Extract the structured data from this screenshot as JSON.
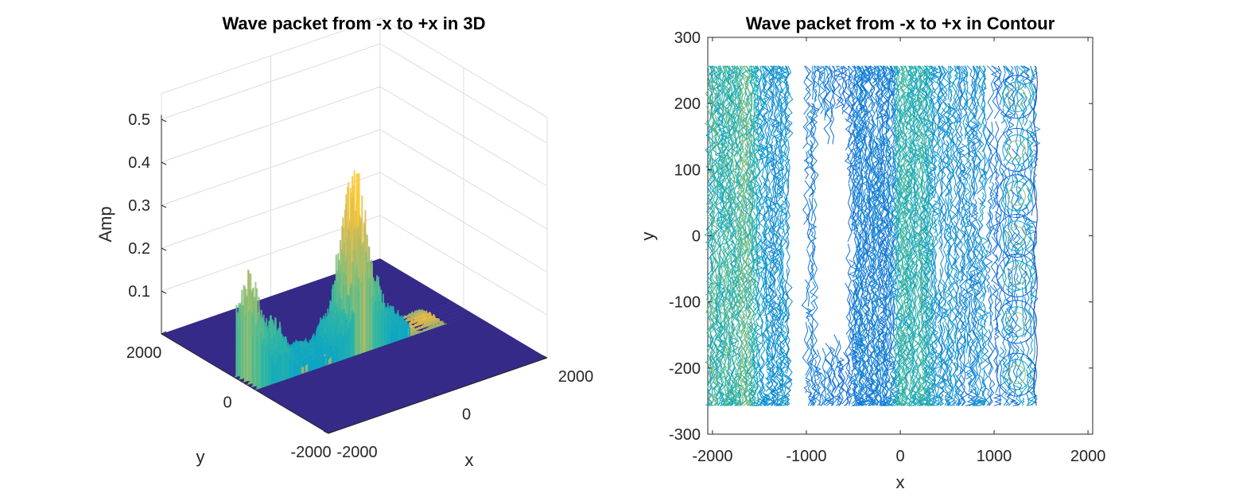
{
  "chart_data": [
    {
      "type": "surface",
      "title": "Wave packet from -x to +x in 3D",
      "xlabel": "x",
      "ylabel": "y",
      "zlabel": "Amp",
      "xlim": [
        -2000,
        2000
      ],
      "ylim": [
        -2000,
        2000
      ],
      "zlim": [
        0,
        0.5
      ],
      "x_ticks": [
        -2000,
        0,
        2000
      ],
      "y_ticks": [
        -2000,
        0,
        2000
      ],
      "z_ticks": [
        0.1,
        0.2,
        0.3,
        0.4,
        0.5
      ],
      "x_tick_labels": [
        "-2000",
        "0",
        "2000"
      ],
      "y_tick_labels": [
        "-2000",
        "0",
        "2000"
      ],
      "z_tick_labels": [
        "0.1",
        "0.2",
        "0.3",
        "0.4",
        "0.5"
      ],
      "grid": true,
      "colormap": "parula",
      "peaks": [
        {
          "x": -1900,
          "amp": 0.28
        },
        {
          "x": -1500,
          "amp": 0.15
        },
        {
          "x": -900,
          "amp": 0.06
        },
        {
          "x": -300,
          "amp": 0.14
        },
        {
          "x": 0,
          "amp": 0.47
        },
        {
          "x": 250,
          "amp": 0.22
        },
        {
          "x": 600,
          "amp": 0.08
        },
        {
          "x": 1300,
          "amp": 0.02
        }
      ]
    },
    {
      "type": "contour",
      "title": "Wave packet from -x to +x in Contour",
      "xlabel": "x",
      "ylabel": "y",
      "xlim": [
        -2050,
        2050
      ],
      "ylim": [
        -300,
        300
      ],
      "x_ticks": [
        -2000,
        -1000,
        0,
        1000,
        2000
      ],
      "y_ticks": [
        -300,
        -200,
        -100,
        0,
        100,
        200,
        300
      ],
      "x_tick_labels": [
        "-2000",
        "-1000",
        "0",
        "1000",
        "2000"
      ],
      "y_tick_labels": [
        "-300",
        "-200",
        "-100",
        "0",
        "100",
        "200",
        "300"
      ],
      "data_extent": {
        "x": [
          -2040,
          1450
        ],
        "y": [
          -257,
          257
        ]
      },
      "bands": [
        {
          "x0": -2040,
          "x1": -1520,
          "density": 1.0,
          "level": 0.8
        },
        {
          "x0": -1520,
          "x1": -1180,
          "density": 0.7,
          "level": 0.45
        },
        {
          "x0": -1000,
          "x1": -500,
          "density": 0.45,
          "level": 0.3,
          "gap_center": true
        },
        {
          "x0": -500,
          "x1": -50,
          "density": 0.9,
          "level": 0.35
        },
        {
          "x0": -50,
          "x1": 330,
          "density": 1.0,
          "level": 0.7
        },
        {
          "x0": 330,
          "x1": 900,
          "density": 0.55,
          "level": 0.45
        },
        {
          "x0": 900,
          "x1": 1450,
          "density": 0.35,
          "level": 0.4
        }
      ],
      "ring_centers_x": 1240,
      "ring_centers_y": [
        -210,
        -130,
        -60,
        0,
        60,
        130,
        210
      ]
    }
  ]
}
